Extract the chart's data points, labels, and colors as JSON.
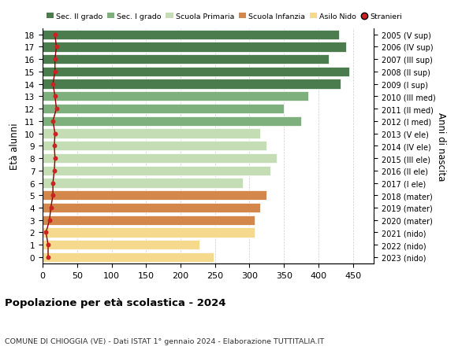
{
  "ages": [
    18,
    17,
    16,
    15,
    14,
    13,
    12,
    11,
    10,
    9,
    8,
    7,
    6,
    5,
    4,
    3,
    2,
    1,
    0
  ],
  "right_labels": [
    "2005 (V sup)",
    "2006 (IV sup)",
    "2007 (III sup)",
    "2008 (II sup)",
    "2009 (I sup)",
    "2010 (III med)",
    "2011 (II med)",
    "2012 (I med)",
    "2013 (V ele)",
    "2014 (IV ele)",
    "2015 (III ele)",
    "2016 (II ele)",
    "2017 (I ele)",
    "2018 (mater)",
    "2019 (mater)",
    "2020 (mater)",
    "2021 (nido)",
    "2022 (nido)",
    "2023 (nido)"
  ],
  "bar_values": [
    430,
    440,
    415,
    445,
    432,
    385,
    350,
    375,
    315,
    325,
    340,
    330,
    290,
    325,
    315,
    308,
    308,
    228,
    248
  ],
  "stranieri_values": [
    18,
    20,
    18,
    18,
    15,
    18,
    20,
    15,
    18,
    17,
    18,
    17,
    15,
    15,
    12,
    10,
    5,
    8,
    8
  ],
  "bar_colors": [
    "#4a7c4e",
    "#4a7c4e",
    "#4a7c4e",
    "#4a7c4e",
    "#4a7c4e",
    "#7db07d",
    "#7db07d",
    "#7db07d",
    "#c5ddb5",
    "#c5ddb5",
    "#c5ddb5",
    "#c5ddb5",
    "#c5ddb5",
    "#d4874a",
    "#d4874a",
    "#d4874a",
    "#f5d98c",
    "#f5d98c",
    "#f5d98c"
  ],
  "legend_labels": [
    "Sec. II grado",
    "Sec. I grado",
    "Scuola Primaria",
    "Scuola Infanzia",
    "Asilo Nido",
    "Stranieri"
  ],
  "legend_colors": [
    "#4a7c4e",
    "#7db07d",
    "#c5ddb5",
    "#d4874a",
    "#f5d98c",
    "#cc2222"
  ],
  "ylabel": "Età alunni",
  "right_ylabel": "Anni di nascita",
  "title": "Popolazione per età scolastica - 2024",
  "subtitle": "COMUNE DI CHIOGGIA (VE) - Dati ISTAT 1° gennaio 2024 - Elaborazione TUTTITALIA.IT",
  "xlim": [
    0,
    480
  ],
  "xticks": [
    0,
    50,
    100,
    150,
    200,
    250,
    300,
    350,
    400,
    450
  ],
  "grid_color": "#cccccc"
}
